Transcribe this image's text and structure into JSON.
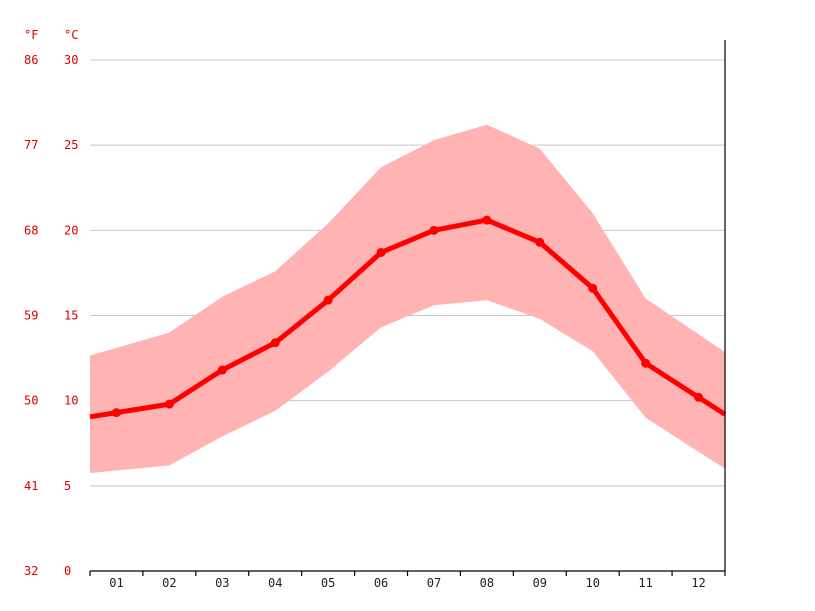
{
  "chart_data": {
    "type": "line",
    "title": "",
    "units": {
      "left": "°F",
      "right": "°C"
    },
    "x_categories": [
      "01",
      "02",
      "03",
      "04",
      "05",
      "06",
      "07",
      "08",
      "09",
      "10",
      "11",
      "12"
    ],
    "y_ticks_c": [
      "0",
      "5",
      "10",
      "15",
      "20",
      "25",
      "30"
    ],
    "y_ticks_f": [
      "32",
      "41",
      "50",
      "59",
      "68",
      "77",
      "86"
    ],
    "ylim_c": [
      0,
      30
    ],
    "grid": true,
    "series": [
      {
        "values": [
          9.3,
          9.8,
          11.8,
          13.4,
          15.9,
          18.7,
          20.0,
          20.6,
          19.3,
          16.6,
          12.2,
          10.2
        ]
      }
    ],
    "band": {
      "upper": [
        13.1,
        14.0,
        16.1,
        17.6,
        20.4,
        23.7,
        25.3,
        26.2,
        24.8,
        21.0,
        16.0,
        13.9
      ],
      "lower": [
        5.9,
        6.2,
        7.9,
        9.4,
        11.7,
        14.3,
        15.6,
        15.9,
        14.8,
        12.9,
        9.0,
        7.0
      ]
    },
    "colors": {
      "line": "#ff0000",
      "band": "#ffb3b3",
      "unit_labels": "#e00000",
      "grid": "#c8c8c8"
    }
  }
}
